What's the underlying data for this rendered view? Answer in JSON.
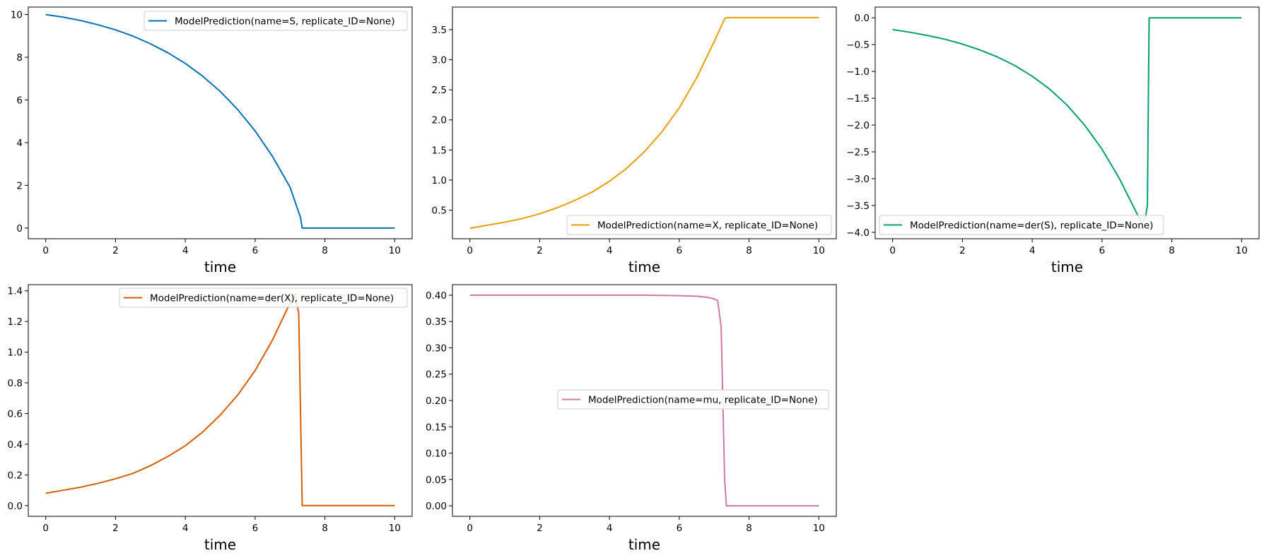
{
  "chart_data": [
    {
      "type": "line",
      "xlabel": "time",
      "xlim": [
        -0.5,
        10.5
      ],
      "xticks": [
        0,
        2,
        4,
        6,
        8,
        10
      ],
      "ylim": [
        -0.5,
        10.35
      ],
      "yticks": [
        0,
        2,
        4,
        6,
        8,
        10
      ],
      "legend_loc": "upper right",
      "series": [
        {
          "name": "ModelPrediction(name=S, replicate_ID=None)",
          "color": "#0072b2",
          "x": [
            0,
            0.5,
            1,
            1.5,
            2,
            2.5,
            3,
            3.5,
            4,
            4.5,
            5,
            5.5,
            6,
            6.5,
            7,
            7.3,
            7.35,
            7.5,
            8,
            8.5,
            9,
            9.5,
            10
          ],
          "y": [
            10,
            9.88,
            9.72,
            9.52,
            9.28,
            8.99,
            8.63,
            8.21,
            7.71,
            7.11,
            6.4,
            5.55,
            4.55,
            3.35,
            1.92,
            0.5,
            0,
            0,
            0,
            0,
            0,
            0,
            0
          ]
        }
      ]
    },
    {
      "type": "line",
      "xlabel": "time",
      "xlim": [
        -0.5,
        10.5
      ],
      "xticks": [
        0,
        2,
        4,
        6,
        8,
        10
      ],
      "ylim": [
        0.025,
        3.875
      ],
      "yticks": [
        0.5,
        1.0,
        1.5,
        2.0,
        2.5,
        3.0,
        3.5
      ],
      "legend_loc": "lower right",
      "series": [
        {
          "name": "ModelPrediction(name=X, replicate_ID=None)",
          "color": "#e69f00",
          "x": [
            0,
            0.5,
            1,
            1.5,
            2,
            2.5,
            3,
            3.5,
            4,
            4.5,
            5,
            5.5,
            6,
            6.5,
            7,
            7.3,
            7.35,
            7.5,
            8,
            8.5,
            9,
            9.5,
            10
          ],
          "y": [
            0.2,
            0.25,
            0.3,
            0.36,
            0.44,
            0.54,
            0.66,
            0.8,
            0.98,
            1.2,
            1.47,
            1.8,
            2.2,
            2.7,
            3.3,
            3.68,
            3.7,
            3.7,
            3.7,
            3.7,
            3.7,
            3.7,
            3.7
          ]
        }
      ]
    },
    {
      "type": "line",
      "xlabel": "time",
      "xlim": [
        -0.5,
        10.5
      ],
      "xticks": [
        0,
        2,
        4,
        6,
        8,
        10
      ],
      "ylim": [
        -4.12,
        0.2
      ],
      "yticks": [
        0.0,
        -0.5,
        -1.0,
        -1.5,
        -2.0,
        -2.5,
        -3.0,
        -3.5,
        -4.0
      ],
      "legend_loc": "lower left",
      "series": [
        {
          "name": "ModelPrediction(name=der(S), replicate_ID=None)",
          "color": "#009e73",
          "x": [
            0,
            0.5,
            1,
            1.5,
            2,
            2.5,
            3,
            3.5,
            4,
            4.5,
            5,
            5.5,
            6,
            6.5,
            7,
            7.15,
            7.25,
            7.3,
            7.35,
            7.5,
            8,
            8.5,
            9,
            9.5,
            10
          ],
          "y": [
            -0.22,
            -0.27,
            -0.33,
            -0.4,
            -0.49,
            -0.6,
            -0.73,
            -0.89,
            -1.09,
            -1.33,
            -1.63,
            -2.0,
            -2.45,
            -3.0,
            -3.65,
            -3.85,
            -3.7,
            -3.5,
            0,
            0,
            0,
            0,
            0,
            0,
            0
          ]
        }
      ]
    },
    {
      "type": "line",
      "xlabel": "time",
      "xlim": [
        -0.5,
        10.5
      ],
      "xticks": [
        0,
        2,
        4,
        6,
        8,
        10
      ],
      "ylim": [
        -0.07,
        1.44
      ],
      "yticks": [
        0.0,
        0.2,
        0.4,
        0.6,
        0.8,
        1.0,
        1.2,
        1.4
      ],
      "legend_loc": "upper right",
      "series": [
        {
          "name": "ModelPrediction(name=der(X), replicate_ID=None)",
          "color": "#d55e00",
          "x": [
            0,
            0.5,
            1,
            1.5,
            2,
            2.5,
            3,
            3.5,
            4,
            4.5,
            5,
            5.5,
            6,
            6.5,
            7,
            7.15,
            7.25,
            7.35,
            7.5,
            8,
            8.5,
            9,
            9.5,
            10
          ],
          "y": [
            0.08,
            0.1,
            0.12,
            0.145,
            0.175,
            0.21,
            0.26,
            0.32,
            0.39,
            0.48,
            0.59,
            0.72,
            0.88,
            1.08,
            1.32,
            1.38,
            1.25,
            0,
            0,
            0,
            0,
            0,
            0,
            0
          ]
        }
      ]
    },
    {
      "type": "line",
      "xlabel": "time",
      "xlim": [
        -0.5,
        10.5
      ],
      "xticks": [
        0,
        2,
        4,
        6,
        8,
        10
      ],
      "ylim": [
        -0.02,
        0.42
      ],
      "yticks": [
        0.0,
        0.05,
        0.1,
        0.15,
        0.2,
        0.25,
        0.3,
        0.35,
        0.4
      ],
      "legend_loc": "center right",
      "series": [
        {
          "name": "ModelPrediction(name=mu, replicate_ID=None)",
          "color": "#cc79a7",
          "x": [
            0,
            1,
            2,
            3,
            4,
            5,
            6,
            6.5,
            6.8,
            7.0,
            7.1,
            7.2,
            7.3,
            7.35,
            7.5,
            8,
            8.5,
            9,
            9.5,
            10
          ],
          "y": [
            0.4,
            0.4,
            0.4,
            0.4,
            0.4,
            0.4,
            0.399,
            0.398,
            0.396,
            0.393,
            0.39,
            0.34,
            0.05,
            0,
            0,
            0,
            0,
            0,
            0,
            0
          ]
        }
      ]
    }
  ]
}
